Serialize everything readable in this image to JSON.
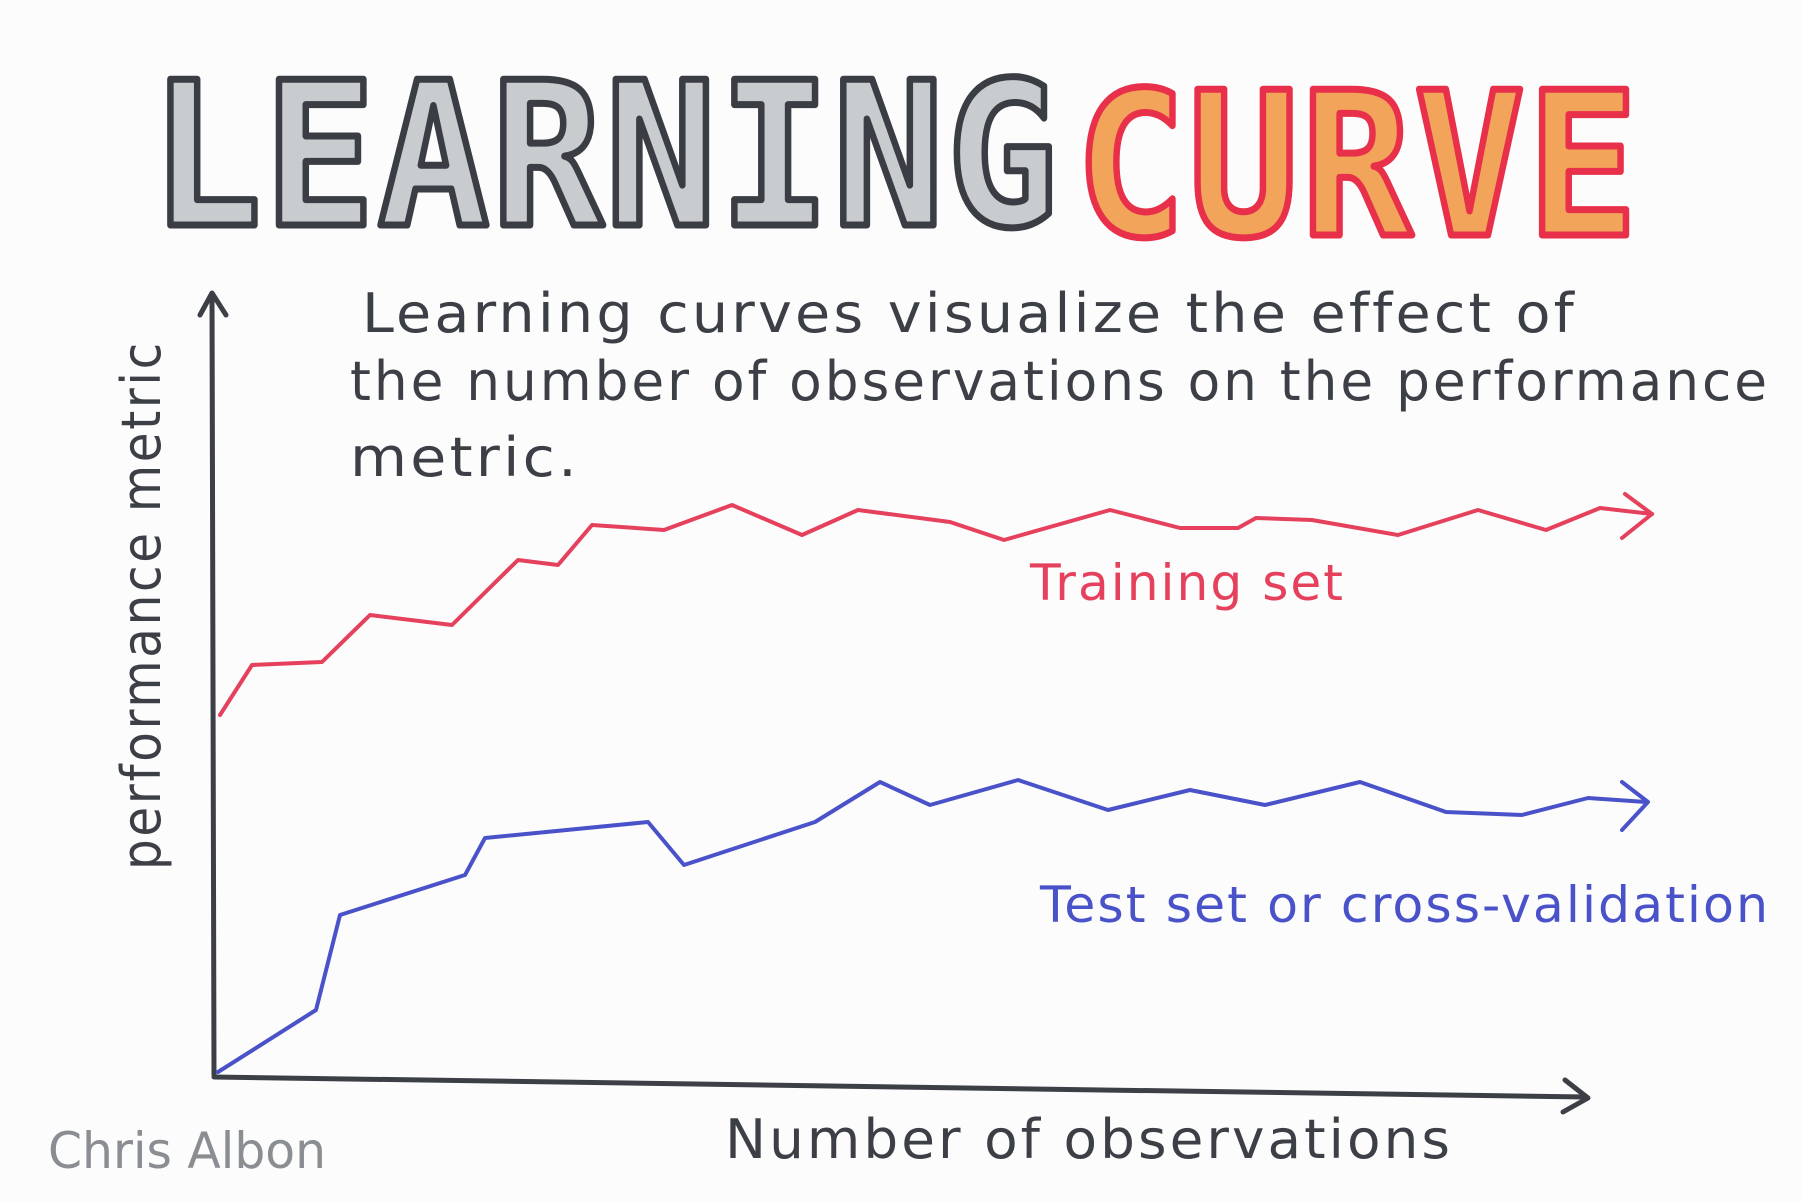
{
  "title": {
    "word1": "LEARNING",
    "word2": "CURVE"
  },
  "description": {
    "lines": [
      "Learning curves visualize the effect of",
      "the number of observations on the performance",
      "metric."
    ]
  },
  "axes": {
    "y_label": "performance metric",
    "x_label": "Number of observations"
  },
  "curves": {
    "training_label": "Training set",
    "test_label": "Test set or cross-validation"
  },
  "author": "Chris Albon",
  "colors": {
    "ink": "#3d3f47",
    "title_gray_fill": "#c9ccce",
    "title_gray_stroke": "#3b3d44",
    "title_orange_fill": "#f2a55a",
    "title_orange_stroke": "#e8304a",
    "training": "#e5405c",
    "test": "#4a52c9",
    "author": "#8a8d91"
  }
}
